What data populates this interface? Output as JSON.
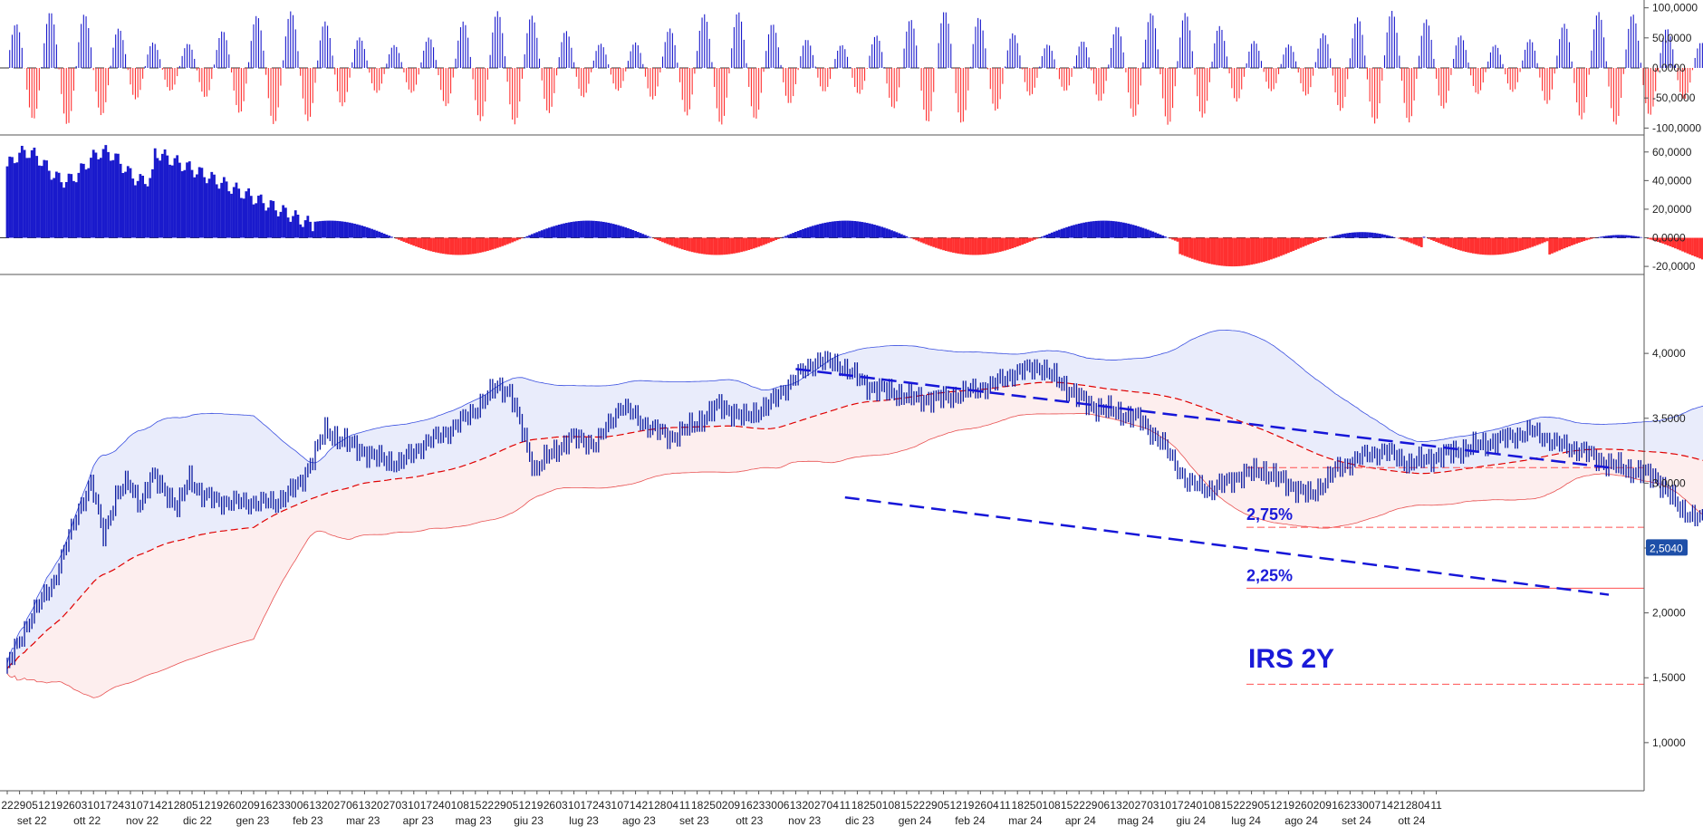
{
  "chart_data": {
    "type": "line",
    "title": "IRS 2Y",
    "colors": {
      "up": "#1a1acc",
      "down": "#ff3030",
      "band_upper_fill": "#e9ecfb",
      "band_lower_fill": "#fdeeee",
      "band_upper_line": "#3a4fe0",
      "band_lower_line": "#e85050",
      "ma": "#e00000",
      "trend": "#1616d8",
      "price": "#0a1aa0",
      "label_bg": "#1e4fa8"
    },
    "x_ticks": [
      "22",
      "29",
      "05",
      "12",
      "19",
      "26",
      "03",
      "10",
      "17",
      "24",
      "31",
      "07",
      "14",
      "21",
      "28",
      "05",
      "12",
      "19",
      "26",
      "02",
      "09",
      "16",
      "23",
      "30",
      "06",
      "13",
      "20",
      "27",
      "06",
      "13",
      "20",
      "27",
      "03",
      "10",
      "17",
      "24",
      "01",
      "08",
      "15",
      "22",
      "29",
      "05",
      "12",
      "19",
      "26",
      "03",
      "10",
      "17",
      "24",
      "31",
      "07",
      "14",
      "21",
      "28",
      "04",
      "11",
      "18",
      "25",
      "02",
      "09",
      "16",
      "23",
      "30",
      "06",
      "13",
      "20",
      "27",
      "04",
      "11",
      "18",
      "25",
      "01",
      "08",
      "15",
      "22",
      "29",
      "05",
      "12",
      "19",
      "26",
      "04",
      "11",
      "18",
      "25",
      "01",
      "08",
      "15",
      "22",
      "29",
      "06",
      "13",
      "20",
      "27",
      "03",
      "10",
      "17",
      "24",
      "01",
      "08",
      "15",
      "22",
      "29",
      "05",
      "12",
      "19",
      "26",
      "02",
      "09",
      "16",
      "23",
      "30",
      "07",
      "14",
      "21",
      "28",
      "04",
      "11"
    ],
    "months": [
      "set 22",
      "ott 22",
      "nov 22",
      "dic 22",
      "gen 23",
      "feb 23",
      "mar 23",
      "apr 23",
      "mag 23",
      "giu 23",
      "lug 23",
      "ago 23",
      "set 23",
      "ott 23",
      "nov 23",
      "dic 23",
      "gen 24",
      "feb 24",
      "mar 24",
      "apr 24",
      "mag 24",
      "giu 24",
      "lug 24",
      "ago 24",
      "set 24",
      "ott 24"
    ],
    "panels": [
      {
        "name": "oscillator-top",
        "ylim": [
          -110,
          110
        ],
        "y_ticks": [
          "100,0000",
          "50,0000",
          "0,0000",
          "-50,0000",
          "-100,0000"
        ],
        "y_tick_values": [
          100,
          50,
          0,
          -50,
          -100
        ]
      },
      {
        "name": "oscillator-middle",
        "ylim": [
          -25,
          70
        ],
        "y_ticks": [
          "60,0000",
          "40,0000",
          "20,0000",
          "0,0000",
          "-20,0000"
        ],
        "y_tick_values": [
          60,
          40,
          20,
          0,
          -20
        ]
      },
      {
        "name": "price",
        "ylim": [
          0.65,
          4.35
        ],
        "y_ticks": [
          "4,0000",
          "3,5000",
          "3,0000",
          "2,5000",
          "2,0000",
          "1,5000",
          "1,0000"
        ],
        "y_tick_values": [
          4.0,
          3.5,
          3.0,
          2.5,
          2.0,
          1.5,
          1.0
        ],
        "last_value_label": "2,5040",
        "last_value": 2.504,
        "annotations": [
          {
            "text": "2,75%",
            "level": 2.66,
            "style": "dashed"
          },
          {
            "text": "2,25%",
            "level": 2.19,
            "style": "solid"
          },
          {
            "text": "",
            "level": 3.12,
            "style": "dashed"
          },
          {
            "text": "",
            "level": 1.45,
            "style": "dashed"
          }
        ],
        "trendlines": [
          {
            "from_week": 64,
            "from_value": 3.88,
            "to_week": 130,
            "to_value": 3.12
          },
          {
            "from_week": 68,
            "from_value": 2.89,
            "to_week": 130,
            "to_value": 2.14
          }
        ],
        "price_keypoints": [
          [
            0,
            1.55
          ],
          [
            2,
            1.95
          ],
          [
            4,
            2.25
          ],
          [
            6,
            2.8
          ],
          [
            7,
            3.0
          ],
          [
            8,
            2.6
          ],
          [
            9,
            2.9
          ],
          [
            10,
            3.0
          ],
          [
            11,
            2.85
          ],
          [
            12,
            3.05
          ],
          [
            13,
            2.95
          ],
          [
            14,
            2.8
          ],
          [
            15,
            3.05
          ],
          [
            16,
            2.9
          ],
          [
            18,
            2.85
          ],
          [
            20,
            2.85
          ],
          [
            22,
            2.85
          ],
          [
            24,
            3.0
          ],
          [
            26,
            3.4
          ],
          [
            28,
            3.3
          ],
          [
            30,
            3.2
          ],
          [
            32,
            3.15
          ],
          [
            34,
            3.3
          ],
          [
            36,
            3.4
          ],
          [
            38,
            3.55
          ],
          [
            40,
            3.75
          ],
          [
            41,
            3.7
          ],
          [
            42,
            3.4
          ],
          [
            43,
            3.1
          ],
          [
            44,
            3.2
          ],
          [
            46,
            3.35
          ],
          [
            48,
            3.3
          ],
          [
            50,
            3.6
          ],
          [
            52,
            3.45
          ],
          [
            54,
            3.35
          ],
          [
            56,
            3.45
          ],
          [
            58,
            3.6
          ],
          [
            60,
            3.5
          ],
          [
            62,
            3.6
          ],
          [
            64,
            3.8
          ],
          [
            66,
            3.95
          ],
          [
            68,
            3.9
          ],
          [
            70,
            3.75
          ],
          [
            72,
            3.7
          ],
          [
            74,
            3.65
          ],
          [
            76,
            3.65
          ],
          [
            78,
            3.7
          ],
          [
            80,
            3.75
          ],
          [
            82,
            3.85
          ],
          [
            84,
            3.9
          ],
          [
            86,
            3.75
          ],
          [
            88,
            3.6
          ],
          [
            90,
            3.55
          ],
          [
            92,
            3.5
          ],
          [
            94,
            3.3
          ],
          [
            96,
            3.0
          ],
          [
            98,
            2.95
          ],
          [
            100,
            3.05
          ],
          [
            102,
            3.1
          ],
          [
            104,
            3.0
          ],
          [
            106,
            2.9
          ],
          [
            108,
            3.1
          ],
          [
            110,
            3.2
          ],
          [
            112,
            3.25
          ],
          [
            114,
            3.15
          ],
          [
            116,
            3.2
          ],
          [
            118,
            3.25
          ],
          [
            120,
            3.3
          ],
          [
            122,
            3.35
          ],
          [
            124,
            3.4
          ],
          [
            126,
            3.3
          ],
          [
            128,
            3.25
          ],
          [
            130,
            3.15
          ],
          [
            132,
            3.1
          ],
          [
            134,
            3.05
          ],
          [
            136,
            2.8
          ],
          [
            138,
            2.7
          ],
          [
            140,
            2.65
          ],
          [
            142,
            2.65
          ],
          [
            144,
            2.6
          ],
          [
            146,
            2.5
          ]
        ]
      }
    ]
  }
}
